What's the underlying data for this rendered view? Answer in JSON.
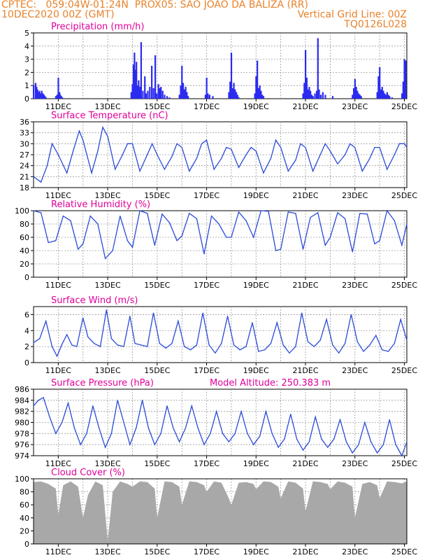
{
  "header": {
    "line1_left": "CPTEC:   059:04W-01:24N  PROX05: SAO JOAO DA BALIZA (RR)",
    "line2_left": "10DEC2020 00Z (GMT)",
    "line2_right": "Vertical Grid Line: 00Z",
    "line3_right": "TQ0126L028"
  },
  "x_tick_labels": [
    "11DEC",
    "13DEC",
    "15DEC",
    "17DEC",
    "19DEC",
    "21DEC",
    "23DEC",
    "25DEC"
  ],
  "x_range_days": [
    10,
    25.1
  ],
  "chart_data": [
    {
      "type": "bar",
      "title": "Precipitation (mm/h)",
      "ylim": [
        0,
        5
      ],
      "yticks": [
        0,
        1,
        2,
        3,
        4,
        5
      ],
      "color": "#2a2af0",
      "x_ref": "day of December 2020 (fraction = hour/24)",
      "series": [
        {
          "x": [
            10.0,
            10.08,
            10.12,
            10.16,
            10.2,
            10.24,
            10.28,
            10.33,
            10.38,
            10.42,
            10.46,
            10.5,
            10.9,
            10.95,
            11.0,
            11.05,
            11.08,
            11.12,
            11.16,
            13.95,
            14.0,
            14.04,
            14.08,
            14.12,
            14.16,
            14.2,
            14.25,
            14.3,
            14.35,
            14.42,
            14.5,
            14.55,
            14.62,
            14.7,
            14.78,
            14.85,
            14.92,
            14.98,
            15.05,
            15.1,
            15.15,
            15.22,
            15.3,
            15.4,
            15.5,
            15.9,
            15.95,
            16.0,
            16.05,
            16.1,
            16.15,
            16.2,
            16.25,
            16.95,
            17.0,
            17.05,
            17.12,
            17.25,
            17.9,
            17.95,
            18.0,
            18.05,
            18.1,
            18.15,
            18.2,
            18.25,
            18.3,
            18.95,
            19.0,
            19.05,
            19.1,
            19.15,
            19.2,
            19.25,
            19.3,
            20.9,
            20.95,
            21.0,
            21.05,
            21.1,
            21.15,
            21.2,
            21.25,
            21.3,
            21.38,
            21.45,
            21.5,
            21.55,
            21.62,
            21.7,
            21.8,
            22.1,
            22.9,
            22.95,
            23.0,
            23.05,
            23.1,
            23.15,
            23.2,
            23.25,
            23.9,
            23.95,
            24.0,
            24.05,
            24.1,
            24.15,
            24.2,
            24.25,
            24.3,
            24.35,
            24.4,
            24.5,
            24.9,
            24.95,
            25.0,
            25.05
          ],
          "values": [
            1.0,
            1.2,
            0.9,
            0.7,
            0.5,
            0.6,
            0.4,
            0.6,
            0.4,
            0.3,
            0.2,
            0.1,
            0.2,
            0.3,
            1.6,
            0.5,
            0.3,
            0.2,
            0.1,
            0.5,
            1.1,
            2.6,
            3.5,
            2.2,
            2.8,
            1.0,
            1.4,
            0.9,
            4.3,
            0.6,
            1.7,
            0.4,
            0.6,
            0.9,
            2.5,
            0.8,
            3.3,
            0.4,
            1.1,
            0.8,
            0.9,
            0.6,
            0.3,
            0.2,
            0.1,
            0.3,
            1.0,
            2.5,
            1.2,
            0.7,
            0.9,
            0.5,
            0.2,
            0.3,
            1.6,
            0.4,
            0.3,
            0.2,
            0.5,
            1.3,
            3.5,
            0.8,
            1.2,
            0.7,
            0.5,
            0.3,
            0.1,
            0.4,
            1.7,
            2.9,
            0.8,
            1.0,
            0.6,
            0.3,
            0.2,
            0.4,
            1.2,
            3.7,
            1.6,
            0.7,
            0.9,
            0.6,
            0.3,
            0.2,
            0.4,
            0.6,
            4.6,
            0.7,
            0.3,
            0.5,
            0.3,
            0.2,
            0.3,
            0.8,
            1.5,
            0.9,
            0.6,
            0.4,
            0.3,
            0.2,
            0.5,
            1.7,
            2.4,
            0.7,
            0.9,
            0.6,
            0.4,
            0.3,
            0.5,
            0.3,
            0.2,
            0.1,
            0.4,
            1.3,
            3.0,
            2.9
          ]
        }
      ]
    },
    {
      "type": "line",
      "title": "Surface Temperature (nC)",
      "ylim": [
        18,
        36
      ],
      "yticks": [
        18,
        21,
        24,
        27,
        30,
        33,
        36
      ],
      "color": "#2a4ad8",
      "series": [
        {
          "x": [
            10.0,
            10.3,
            10.55,
            10.75,
            11.0,
            11.35,
            11.6,
            11.85,
            12.0,
            12.35,
            12.6,
            12.8,
            13.0,
            13.3,
            13.6,
            13.8,
            14.0,
            14.3,
            14.6,
            14.8,
            15.0,
            15.3,
            15.6,
            15.8,
            16.0,
            16.3,
            16.6,
            16.8,
            17.0,
            17.3,
            17.6,
            17.8,
            18.0,
            18.3,
            18.6,
            18.8,
            19.0,
            19.3,
            19.6,
            19.8,
            20.0,
            20.3,
            20.6,
            20.8,
            21.0,
            21.3,
            21.6,
            21.8,
            22.0,
            22.3,
            22.6,
            22.8,
            23.0,
            23.3,
            23.6,
            23.8,
            24.0,
            24.3,
            24.6,
            24.8,
            25.0,
            25.1
          ],
          "values": [
            21,
            19.5,
            24,
            30,
            27,
            22,
            28,
            33.5,
            31,
            22,
            28,
            34.5,
            32,
            23,
            27,
            30,
            30,
            22.5,
            27,
            30,
            27,
            23,
            26.5,
            30,
            29,
            22.5,
            26,
            30,
            31,
            23,
            26,
            29,
            28.5,
            23.5,
            27,
            29,
            28,
            22,
            26,
            31,
            29,
            22.5,
            25.5,
            30,
            29,
            22.5,
            27,
            30,
            28,
            24.5,
            27,
            30,
            29,
            22.5,
            26,
            29,
            29,
            23,
            27,
            30,
            30,
            29
          ]
        }
      ]
    },
    {
      "type": "line",
      "title": "Relative Humidity (%)",
      "ylim": [
        0,
        100
      ],
      "yticks": [
        0,
        20,
        40,
        60,
        80,
        100
      ],
      "color": "#2a4ad8",
      "series": [
        {
          "x": [
            10.0,
            10.3,
            10.6,
            10.9,
            11.2,
            11.5,
            11.8,
            12.0,
            12.3,
            12.6,
            12.9,
            13.2,
            13.5,
            13.8,
            14.0,
            14.3,
            14.6,
            14.9,
            15.2,
            15.5,
            15.8,
            16.0,
            16.3,
            16.6,
            16.9,
            17.2,
            17.5,
            17.8,
            18.0,
            18.3,
            18.6,
            18.9,
            19.2,
            19.5,
            19.8,
            20.0,
            20.3,
            20.6,
            20.9,
            21.2,
            21.5,
            21.8,
            22.0,
            22.3,
            22.6,
            22.9,
            23.2,
            23.5,
            23.8,
            24.0,
            24.3,
            24.6,
            24.9,
            25.1
          ],
          "values": [
            100,
            97,
            52,
            55,
            92,
            85,
            42,
            50,
            92,
            80,
            28,
            40,
            92,
            55,
            45,
            100,
            96,
            48,
            95,
            82,
            55,
            62,
            96,
            88,
            35,
            92,
            80,
            60,
            60,
            98,
            85,
            60,
            100,
            99,
            40,
            42,
            98,
            96,
            42,
            90,
            97,
            48,
            60,
            97,
            88,
            38,
            96,
            95,
            50,
            55,
            100,
            85,
            48,
            80
          ]
        }
      ]
    },
    {
      "type": "line",
      "title": "Surface Wind (m/s)",
      "ylim": [
        0,
        7
      ],
      "yticks": [
        0,
        2,
        4,
        6
      ],
      "color": "#2a4ad8",
      "series": [
        {
          "x": [
            10.0,
            10.25,
            10.5,
            10.75,
            10.95,
            11.15,
            11.35,
            11.55,
            11.75,
            12.0,
            12.2,
            12.45,
            12.7,
            12.95,
            13.15,
            13.4,
            13.65,
            13.9,
            14.1,
            14.35,
            14.6,
            14.85,
            15.1,
            15.35,
            15.6,
            15.85,
            16.1,
            16.35,
            16.6,
            16.85,
            17.1,
            17.35,
            17.6,
            17.85,
            18.1,
            18.35,
            18.6,
            18.85,
            19.1,
            19.35,
            19.6,
            19.85,
            20.1,
            20.35,
            20.6,
            20.85,
            21.1,
            21.35,
            21.6,
            21.85,
            22.1,
            22.35,
            22.6,
            22.85,
            23.1,
            23.35,
            23.6,
            23.85,
            24.1,
            24.35,
            24.6,
            24.85,
            25.1
          ],
          "values": [
            2.5,
            3.0,
            5.2,
            2.0,
            0.8,
            2.3,
            3.5,
            2.2,
            2.0,
            5.6,
            3.2,
            2.4,
            2.0,
            6.6,
            3.0,
            2.2,
            2.0,
            5.8,
            2.4,
            2.2,
            2.0,
            6.2,
            2.4,
            1.8,
            2.4,
            5.2,
            2.0,
            1.6,
            2.2,
            6.2,
            2.2,
            1.2,
            2.4,
            5.8,
            2.2,
            1.6,
            2.0,
            5.0,
            1.4,
            1.6,
            2.4,
            5.0,
            2.2,
            1.2,
            2.0,
            6.2,
            2.6,
            2.0,
            2.8,
            5.4,
            2.2,
            1.2,
            2.4,
            6.0,
            2.6,
            1.4,
            2.2,
            3.4,
            1.6,
            1.4,
            2.4,
            5.4,
            2.8
          ]
        }
      ]
    },
    {
      "type": "line",
      "title": "Surface Pressure (hPa)",
      "annotation": "Model Altitude: 250.383 m",
      "ylim": [
        974,
        986
      ],
      "yticks": [
        974,
        976,
        978,
        980,
        982,
        984,
        986
      ],
      "color": "#2a4ad8",
      "series": [
        {
          "x": [
            10.0,
            10.2,
            10.4,
            10.65,
            10.9,
            11.15,
            11.4,
            11.65,
            11.9,
            12.15,
            12.4,
            12.65,
            12.9,
            13.15,
            13.4,
            13.65,
            13.9,
            14.15,
            14.4,
            14.65,
            14.9,
            15.15,
            15.4,
            15.65,
            15.9,
            16.15,
            16.4,
            16.65,
            16.9,
            17.15,
            17.4,
            17.65,
            17.9,
            18.15,
            18.4,
            18.65,
            18.9,
            19.15,
            19.4,
            19.65,
            19.9,
            20.15,
            20.4,
            20.65,
            20.9,
            21.15,
            21.4,
            21.65,
            21.9,
            22.15,
            22.4,
            22.65,
            22.9,
            23.15,
            23.4,
            23.65,
            23.9,
            24.15,
            24.4,
            24.65,
            24.9,
            25.1
          ],
          "values": [
            983,
            984,
            984.5,
            981,
            978,
            980,
            983.5,
            979,
            976,
            978,
            983,
            979,
            975.5,
            978,
            984,
            980,
            976,
            979,
            984,
            979,
            976,
            978,
            983,
            979,
            976.5,
            979,
            983,
            979,
            976,
            978,
            982,
            978,
            976.5,
            978,
            982,
            978,
            976,
            977.5,
            982,
            978,
            975.5,
            977,
            981.5,
            977,
            975,
            976.5,
            981,
            977,
            975.5,
            977,
            980.5,
            976.5,
            974.5,
            976,
            980,
            976.5,
            974.5,
            976,
            980.5,
            976,
            974,
            976.5
          ]
        }
      ]
    },
    {
      "type": "area",
      "title": "Cloud Cover (%)",
      "ylim": [
        0,
        100
      ],
      "yticks": [
        0,
        20,
        40,
        60,
        80,
        100
      ],
      "color": "#a8a8a8",
      "series": [
        {
          "x": [
            10.0,
            10.3,
            10.6,
            10.9,
            11.0,
            11.2,
            11.5,
            11.8,
            12.0,
            12.2,
            12.5,
            12.8,
            13.0,
            13.2,
            13.5,
            13.8,
            14.0,
            14.3,
            14.6,
            14.9,
            15.0,
            15.3,
            15.6,
            15.9,
            16.0,
            16.3,
            16.6,
            16.9,
            17.0,
            17.3,
            17.6,
            17.9,
            18.0,
            18.3,
            18.6,
            18.9,
            19.0,
            19.3,
            19.6,
            19.9,
            20.0,
            20.3,
            20.6,
            20.9,
            21.0,
            21.3,
            21.6,
            21.9,
            22.0,
            22.3,
            22.6,
            22.9,
            23.0,
            23.3,
            23.6,
            23.9,
            24.0,
            24.3,
            24.6,
            24.9,
            25.1
          ],
          "values": [
            95,
            96,
            92,
            85,
            45,
            90,
            96,
            88,
            40,
            75,
            96,
            90,
            5,
            80,
            96,
            92,
            88,
            96,
            95,
            85,
            40,
            96,
            95,
            88,
            60,
            96,
            95,
            90,
            80,
            96,
            94,
            70,
            60,
            94,
            95,
            92,
            84,
            96,
            95,
            88,
            70,
            96,
            94,
            85,
            50,
            96,
            95,
            92,
            84,
            96,
            94,
            88,
            40,
            92,
            95,
            90,
            70,
            96,
            95,
            93,
            96
          ]
        }
      ]
    }
  ]
}
